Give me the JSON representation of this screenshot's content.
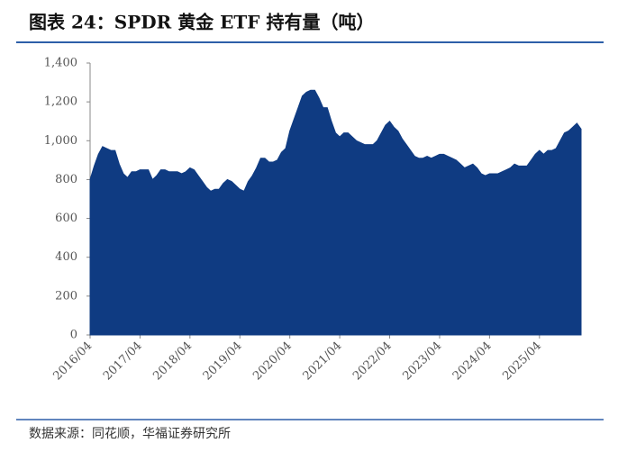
{
  "chart_data": {
    "type": "area",
    "title": "图表 24：SPDR 黄金 ETF 持有量（吨）",
    "source": "数据来源：同花顺，华福证券研究所",
    "color": "#0f3b82",
    "x": [
      "2016/04",
      null,
      null,
      null,
      null,
      null,
      null,
      null,
      null,
      null,
      null,
      null,
      "2017/04",
      null,
      null,
      null,
      null,
      null,
      null,
      null,
      null,
      null,
      null,
      null,
      "2018/04",
      null,
      null,
      null,
      null,
      null,
      null,
      null,
      null,
      null,
      null,
      null,
      "2019/04",
      null,
      null,
      null,
      null,
      null,
      null,
      null,
      null,
      null,
      null,
      null,
      "2020/04",
      null,
      null,
      null,
      null,
      null,
      null,
      null,
      null,
      null,
      null,
      null,
      "2021/04",
      null,
      null,
      null,
      null,
      null,
      null,
      null,
      null,
      null,
      null,
      null,
      "2022/04",
      null,
      null,
      null,
      null,
      null,
      null,
      null,
      null,
      null,
      null,
      null,
      "2023/04",
      null,
      null,
      null,
      null,
      null,
      null,
      null,
      null,
      null,
      null,
      null,
      "2024/04",
      null,
      null,
      null,
      null,
      null,
      null,
      null,
      null,
      null,
      null,
      null,
      "2025/04",
      null,
      null,
      null,
      null,
      null,
      null,
      null,
      null,
      null,
      null
    ],
    "values": [
      800,
      870,
      930,
      970,
      960,
      950,
      950,
      880,
      830,
      810,
      840,
      840,
      850,
      850,
      850,
      800,
      820,
      850,
      850,
      840,
      840,
      840,
      830,
      840,
      860,
      850,
      820,
      790,
      760,
      740,
      750,
      750,
      780,
      800,
      790,
      770,
      750,
      740,
      790,
      820,
      860,
      910,
      910,
      890,
      890,
      900,
      940,
      960,
      1050,
      1110,
      1170,
      1230,
      1250,
      1260,
      1260,
      1220,
      1170,
      1170,
      1100,
      1040,
      1020,
      1040,
      1040,
      1020,
      1000,
      990,
      980,
      980,
      980,
      1000,
      1040,
      1080,
      1100,
      1070,
      1050,
      1010,
      980,
      950,
      920,
      910,
      910,
      920,
      910,
      920,
      930,
      930,
      920,
      910,
      900,
      880,
      860,
      870,
      880,
      860,
      830,
      820,
      830,
      830,
      830,
      840,
      850,
      860,
      880,
      870,
      870,
      870,
      900,
      930,
      950,
      930,
      950,
      950,
      960,
      1000,
      1040,
      1050,
      1070,
      1090,
      1060
    ],
    "ylim": [
      0,
      1400
    ],
    "yticks": [
      0,
      200,
      400,
      600,
      800,
      {
        "value": 1000,
        "label": "1,000"
      },
      {
        "value": 1200,
        "label": "1,200"
      },
      {
        "value": 1400,
        "label": "1,400"
      }
    ]
  }
}
